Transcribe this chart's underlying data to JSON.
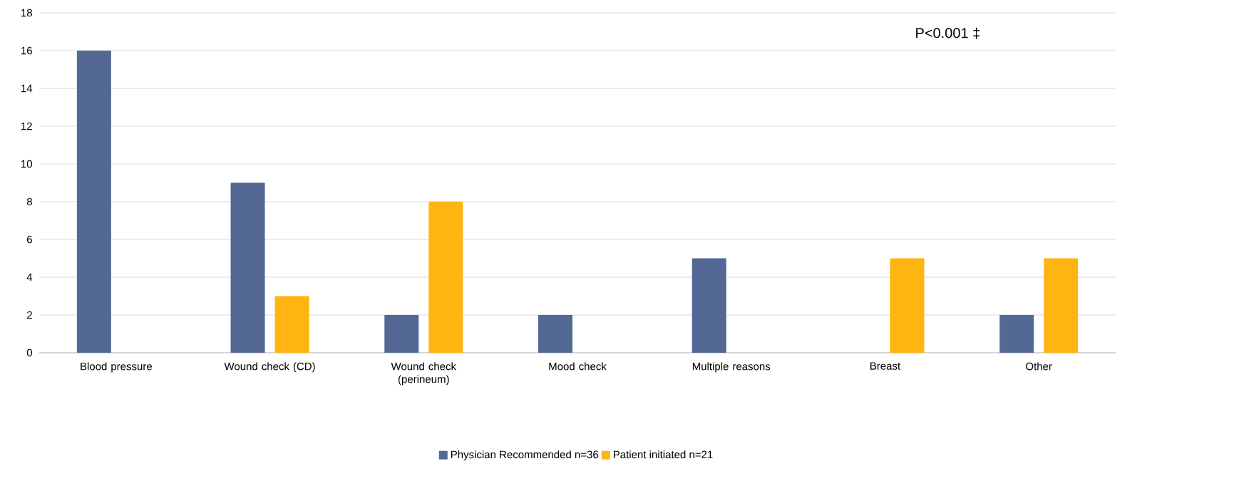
{
  "chart_data": {
    "type": "bar",
    "categories": [
      "Blood pressure",
      "Wound check (CD)",
      "Wound check (perineum)",
      "Mood check",
      "Multiple reasons",
      "Breast",
      "Other"
    ],
    "series": [
      {
        "name": "Physician Recommended n=36",
        "color": "#536895",
        "values": [
          16,
          9,
          2,
          2,
          5,
          0,
          2
        ]
      },
      {
        "name": "Patient initiated n=21",
        "color": "#ffb511",
        "values": [
          0,
          3,
          8,
          0,
          0,
          5,
          5
        ]
      }
    ],
    "ylim": [
      0,
      18
    ],
    "yticks": [
      0,
      2,
      4,
      6,
      8,
      10,
      12,
      14,
      16,
      18
    ],
    "grid": "y",
    "legend": "bottom",
    "annotations": [
      "P<0.001 ‡"
    ]
  }
}
